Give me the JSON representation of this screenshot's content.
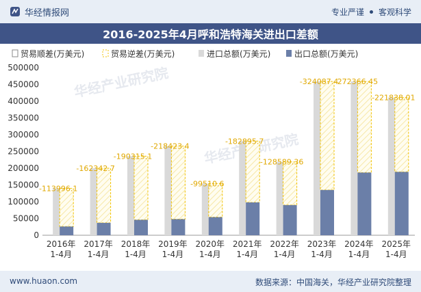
{
  "header": {
    "brand": "华经情报网",
    "right_text_1": "专业严谨",
    "right_text_2": "客观科学"
  },
  "title": "2016-2025年4月呼和浩特海关进出口差额",
  "footer": {
    "website": "www.huaon.com",
    "source": "数据来源：中国海关，华经产业研究院整理"
  },
  "watermark": "华经产业研究院",
  "colors": {
    "import": "#d9d9d9",
    "export": "#6b7fa8",
    "deficit_border": "#f2c200",
    "header_bg": "#3f5487"
  },
  "chart_data": {
    "type": "bar",
    "categories": [
      "2016年\n1-4月",
      "2017年\n1-4月",
      "2018年\n1-4月",
      "2019年\n1-4月",
      "2020年\n1-4月",
      "2021年\n1-4月",
      "2022年\n1-4月",
      "2023年\n1-4月",
      "2024年\n1-4月",
      "2025年\n1-4月"
    ],
    "ylim": [
      0,
      500000
    ],
    "yticks": [
      0,
      50000,
      100000,
      150000,
      200000,
      250000,
      300000,
      350000,
      400000,
      450000,
      500000
    ],
    "legend": [
      "贸易顺差(万美元)",
      "贸易逆差(万美元)",
      "进口总额(万美元)",
      "出口总额(万美元)"
    ],
    "legend_position": "top",
    "series": [
      {
        "name": "进口总额(万美元)",
        "values": [
          140000,
          200000,
          236000,
          266000,
          154000,
          281000,
          219000,
          459000,
          459000,
          411000
        ]
      },
      {
        "name": "出口总额(万美元)",
        "values": [
          26000,
          37000,
          46000,
          48000,
          54000,
          98000,
          90000,
          135000,
          187000,
          189000
        ]
      },
      {
        "name": "贸易逆差(万美元)",
        "values": [
          -113996.1,
          -162342.7,
          -190315.1,
          -218423.4,
          -99510.6,
          -182895.7,
          -128589.36,
          -324087.4,
          -272366.45,
          -221838.01
        ]
      }
    ],
    "data_labels": [
      "-113996.1",
      "-162342.7",
      "-190315.1",
      "-218423.4",
      "-99510.6",
      "-182895.7",
      "-128589.36",
      "-324087.4",
      "-272366.45",
      "-221838.01"
    ]
  }
}
